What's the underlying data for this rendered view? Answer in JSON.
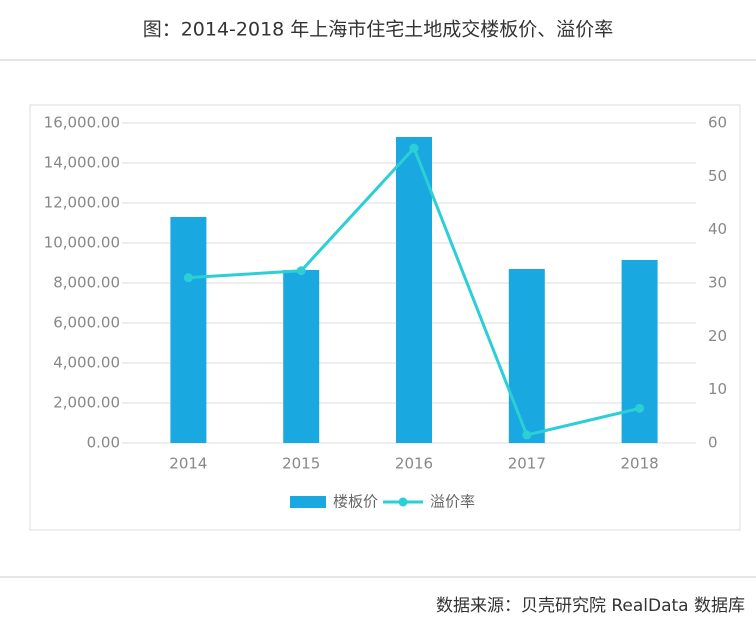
{
  "title": "图：2014-2018 年上海市住宅土地成交楼板价、溢价率",
  "source": "数据来源：贝壳研究院 RealData 数据库",
  "chart_data": {
    "type": "bar",
    "categories": [
      "2014",
      "2015",
      "2016",
      "2017",
      "2018"
    ],
    "series": [
      {
        "name": "楼板价",
        "type": "bar",
        "color": "#1aa8e0",
        "values": [
          11300,
          8650,
          15300,
          8700,
          9150
        ]
      },
      {
        "name": "溢价率",
        "type": "line",
        "axis": "y2",
        "color": "#2ccfd6",
        "values": [
          31,
          32.3,
          55.3,
          1.5,
          6.5
        ]
      }
    ],
    "ylim": [
      0,
      16000
    ],
    "yticks": [
      {
        "value": 0,
        "label": "0.00"
      },
      {
        "value": 2000,
        "label": "2,000.00"
      },
      {
        "value": 4000,
        "label": "4,000.00"
      },
      {
        "value": 6000,
        "label": "6,000.00"
      },
      {
        "value": 8000,
        "label": "8,000.00"
      },
      {
        "value": 10000,
        "label": "10,000.00"
      },
      {
        "value": 12000,
        "label": "12,000.00"
      },
      {
        "value": 14000,
        "label": "14,000.00"
      },
      {
        "value": 16000,
        "label": "16,000.00"
      }
    ],
    "y2lim": [
      0,
      60
    ],
    "y2ticks": [
      0,
      10,
      20,
      30,
      40,
      50,
      60
    ],
    "grid": true,
    "legend": "bottom"
  }
}
